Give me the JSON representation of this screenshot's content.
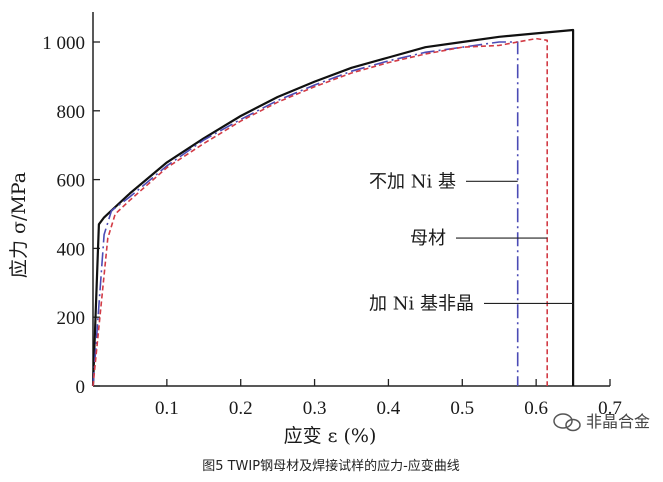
{
  "chart_data": {
    "type": "line",
    "title": "",
    "xlabel": "应变 ε (%)",
    "ylabel": "应力 σ/MPa",
    "xlim": [
      0,
      0.7
    ],
    "ylim": [
      0,
      1100
    ],
    "x_ticks": [
      "0.1",
      "0.2",
      "0.3",
      "0.4",
      "0.5",
      "0.6",
      "0.7"
    ],
    "y_ticks": [
      "0",
      "200",
      "400",
      "600",
      "800",
      "1 000"
    ],
    "series": [
      {
        "name": "加 Ni 基非晶",
        "color": "#111111",
        "style": "solid",
        "x": [
          0,
          0.008,
          0.015,
          0.05,
          0.1,
          0.15,
          0.2,
          0.25,
          0.3,
          0.35,
          0.4,
          0.45,
          0.5,
          0.55,
          0.6,
          0.65,
          0.65
        ],
        "y": [
          0,
          470,
          490,
          560,
          650,
          720,
          785,
          840,
          885,
          925,
          955,
          985,
          1000,
          1015,
          1025,
          1035,
          0
        ]
      },
      {
        "name": "不加 Ni 基",
        "color": "#4b4bb5",
        "style": "dashdot",
        "x": [
          0,
          0.015,
          0.025,
          0.05,
          0.1,
          0.15,
          0.2,
          0.25,
          0.3,
          0.35,
          0.4,
          0.45,
          0.5,
          0.55,
          0.575,
          0.575
        ],
        "y": [
          0,
          440,
          510,
          550,
          640,
          715,
          775,
          830,
          875,
          915,
          945,
          970,
          985,
          1000,
          1000,
          0
        ]
      },
      {
        "name": "母材",
        "color": "#d23b45",
        "style": "dashed",
        "x": [
          0,
          0.02,
          0.03,
          0.05,
          0.1,
          0.15,
          0.2,
          0.25,
          0.3,
          0.35,
          0.4,
          0.45,
          0.5,
          0.55,
          0.6,
          0.615,
          0.615
        ],
        "y": [
          0,
          430,
          500,
          540,
          635,
          705,
          770,
          825,
          870,
          910,
          940,
          965,
          985,
          990,
          1010,
          1005,
          0
        ]
      }
    ],
    "annotations": [
      {
        "text": "不加 Ni 基",
        "x": 0.575,
        "y": 595
      },
      {
        "text": "母材",
        "x": 0.615,
        "y": 430
      },
      {
        "text": "加 Ni 基非晶",
        "x": 0.65,
        "y": 240
      }
    ]
  },
  "caption": "图5   TWIP钢母材及焊接试样的应力-应变曲线",
  "watermark": "非晶合金"
}
